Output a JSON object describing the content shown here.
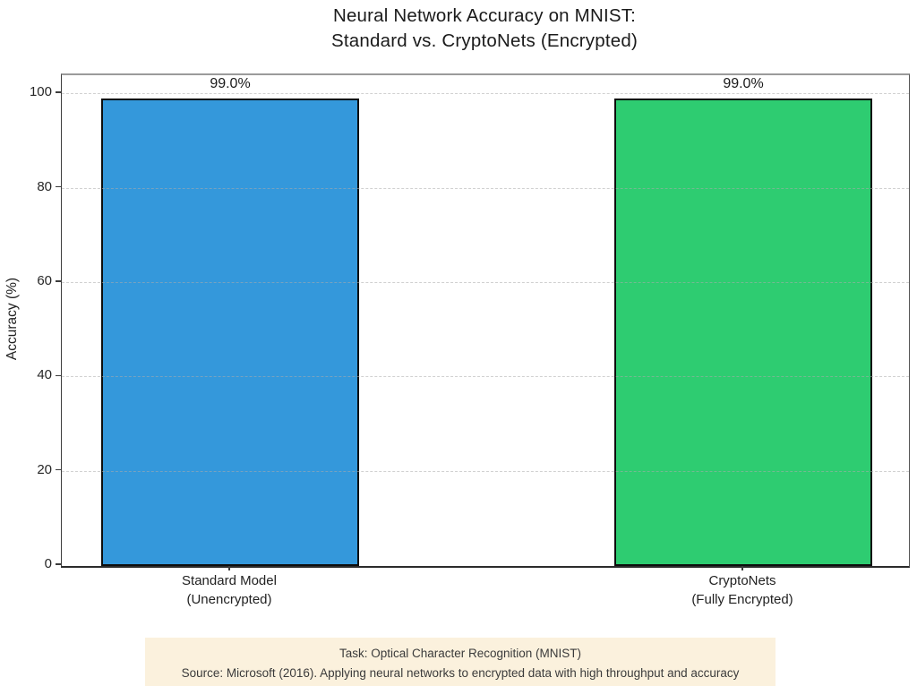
{
  "chart_data": {
    "type": "bar",
    "title_line1": "Neural Network Accuracy on MNIST:",
    "title_line2": "Standard vs. CryptoNets (Encrypted)",
    "ylabel": "Accuracy (%)",
    "categories": [
      {
        "line1": "Standard Model",
        "line2": "(Unencrypted)"
      },
      {
        "line1": "CryptoNets",
        "line2": "(Fully Encrypted)"
      }
    ],
    "values": [
      99.0,
      99.0
    ],
    "value_labels": [
      "99.0%",
      "99.0%"
    ],
    "bar_colors": [
      "#3498db",
      "#2ecc71"
    ],
    "bar_edge_color": "#0d0d0d",
    "yticks": [
      0,
      20,
      40,
      60,
      80,
      100
    ],
    "ytick_labels": [
      "0",
      "20",
      "40",
      "60",
      "80",
      "100"
    ],
    "ylim": [
      0,
      104
    ],
    "grid": {
      "axis": "y",
      "style": "dashed",
      "color": "#d5d5d5"
    },
    "legend": "none"
  },
  "footnote": {
    "line1": "Task: Optical Character Recognition (MNIST)",
    "line2": "Source: Microsoft (2016). Applying neural networks to encrypted data with high throughput and accuracy",
    "bg_color": "#fbf1dd"
  }
}
